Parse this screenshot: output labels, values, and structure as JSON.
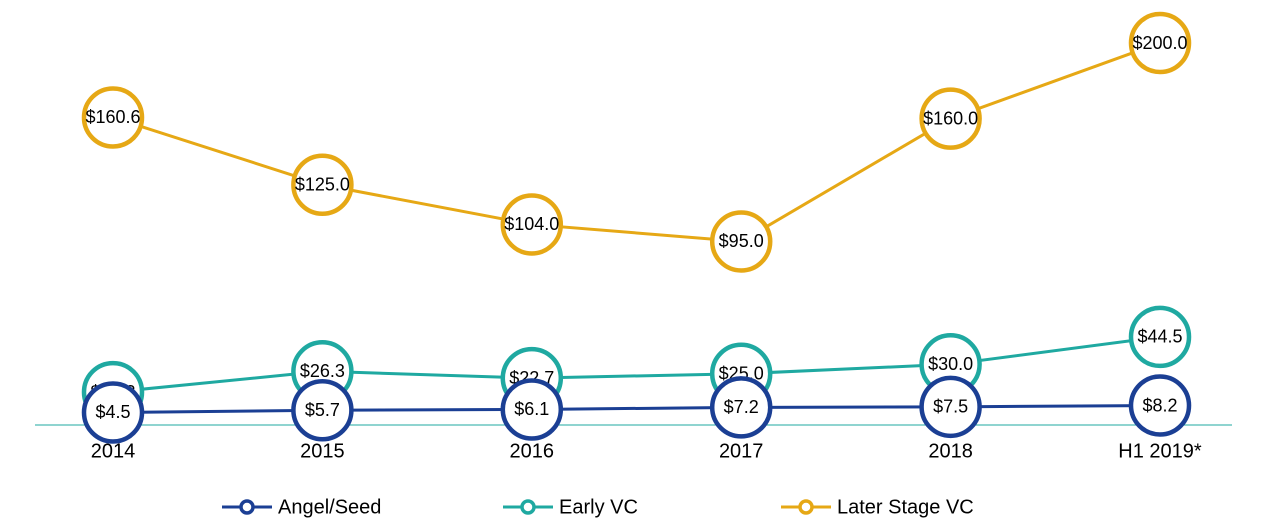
{
  "chart_data": {
    "type": "line",
    "categories": [
      "2014",
      "2015",
      "2016",
      "2017",
      "2018",
      "H1 2019*"
    ],
    "ylim": [
      0,
      200
    ],
    "legend": "bottom",
    "series": [
      {
        "name": "Angel/Seed",
        "color": "#1b3f94",
        "values": [
          4.5,
          5.7,
          6.1,
          7.2,
          7.5,
          8.2
        ],
        "value_labels": [
          "$4.5",
          "$5.7",
          "$6.1",
          "$7.2",
          "$7.5",
          "$8.2"
        ]
      },
      {
        "name": "Early VC",
        "color": "#1fa9a1",
        "values": [
          15.3,
          26.3,
          22.7,
          25.0,
          30.0,
          44.5
        ],
        "value_labels": [
          "$15.3",
          "$26.3",
          "$22.7",
          "$25.0",
          "$30.0",
          "$44.5"
        ]
      },
      {
        "name": "Later Stage VC",
        "color": "#e6a815",
        "values": [
          160.6,
          125.0,
          104.0,
          95.0,
          160.0,
          200.0
        ],
        "value_labels": [
          "$160.6",
          "$125.0",
          "$104.0",
          "$95.0",
          "$160.0",
          "$200.0"
        ]
      }
    ]
  }
}
